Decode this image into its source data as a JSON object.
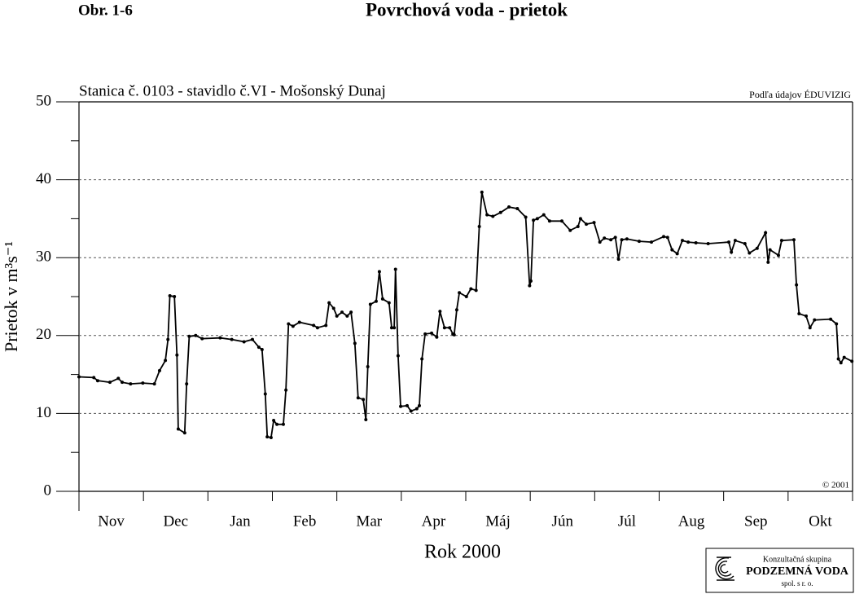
{
  "chart_data": {
    "type": "line",
    "figure_label": "Obr. 1-6",
    "title": "Povrchová voda - prietok",
    "subtitle": "Stanica č. 0103 - stavidlo č.VI - Mošonský Dunaj",
    "source": "Podľa údajov ÉDUVIZIG",
    "copyright": "© 2001",
    "x_label": "Rok 2000",
    "y_label": "Prietok v m³s⁻¹",
    "color": "#000000",
    "grid": true,
    "xlim": [
      0,
      12
    ],
    "ylim": [
      0,
      50
    ],
    "yticks": [
      0,
      10,
      20,
      30,
      40,
      50
    ],
    "xticks": [
      {
        "value": 0.5,
        "label": "Nov"
      },
      {
        "value": 1.5,
        "label": "Dec"
      },
      {
        "value": 2.5,
        "label": "Jan"
      },
      {
        "value": 3.5,
        "label": "Feb"
      },
      {
        "value": 4.5,
        "label": "Mar"
      },
      {
        "value": 5.5,
        "label": "Apr"
      },
      {
        "value": 6.5,
        "label": "Máj"
      },
      {
        "value": 7.5,
        "label": "Jún"
      },
      {
        "value": 8.5,
        "label": "Júl"
      },
      {
        "value": 9.5,
        "label": "Aug"
      },
      {
        "value": 10.5,
        "label": "Sep"
      },
      {
        "value": 11.5,
        "label": "Okt"
      }
    ],
    "x": [
      0,
      0.23,
      0.29,
      0.48,
      0.61,
      0.67,
      0.8,
      0.99,
      1.17,
      1.25,
      1.34,
      1.38,
      1.41,
      1.48,
      1.52,
      1.54,
      1.64,
      1.67,
      1.71,
      1.81,
      1.91,
      2.19,
      2.37,
      2.56,
      2.69,
      2.79,
      2.84,
      2.89,
      2.92,
      2.98,
      3.02,
      3.07,
      3.17,
      3.21,
      3.25,
      3.32,
      3.42,
      3.64,
      3.7,
      3.83,
      3.88,
      3.95,
      4.0,
      4.08,
      4.16,
      4.22,
      4.28,
      4.33,
      4.41,
      4.45,
      4.48,
      4.52,
      4.61,
      4.66,
      4.71,
      4.81,
      4.85,
      4.89,
      4.91,
      4.95,
      4.99,
      5.09,
      5.15,
      5.24,
      5.28,
      5.32,
      5.37,
      5.47,
      5.55,
      5.6,
      5.67,
      5.75,
      5.8,
      5.82,
      5.86,
      5.9,
      6.01,
      6.08,
      6.16,
      6.21,
      6.25,
      6.33,
      6.42,
      6.54,
      6.67,
      6.8,
      6.93,
      6.99,
      7.01,
      7.05,
      7.11,
      7.21,
      7.3,
      7.49,
      7.62,
      7.74,
      7.78,
      7.87,
      7.99,
      8.08,
      8.15,
      8.25,
      8.32,
      8.37,
      8.42,
      8.5,
      8.69,
      8.88,
      9.07,
      9.13,
      9.2,
      9.28,
      9.36,
      9.45,
      9.57,
      9.76,
      10.08,
      10.12,
      10.18,
      10.33,
      10.4,
      10.52,
      10.65,
      10.69,
      10.72,
      10.85,
      10.9,
      11.09,
      11.13,
      11.17,
      11.28,
      11.34,
      11.41,
      11.66,
      11.75,
      11.78,
      11.82,
      11.87,
      11.99
    ],
    "values": [
      14.7,
      14.6,
      14.2,
      14.0,
      14.5,
      14.0,
      13.8,
      13.9,
      13.8,
      15.5,
      16.8,
      19.5,
      25.1,
      25.0,
      17.5,
      8,
      7.5,
      13.8,
      19.9,
      20,
      19.6,
      19.7,
      19.5,
      19.2,
      19.5,
      18.5,
      18.2,
      12.5,
      7,
      6.9,
      9.1,
      8.6,
      8.6,
      13,
      21.5,
      21.2,
      21.7,
      21.3,
      21.0,
      21.3,
      24.2,
      23.5,
      22.5,
      23.0,
      22.5,
      23,
      19,
      12,
      11.8,
      9.2,
      16,
      24,
      24.4,
      28.2,
      24.7,
      24.2,
      21,
      21,
      28.5,
      17.4,
      10.9,
      11,
      10.3,
      10.6,
      11,
      17,
      20.2,
      20.3,
      19.8,
      23.1,
      21,
      21,
      20.2,
      20.1,
      23.3,
      25.5,
      25,
      26,
      25.8,
      34,
      38.4,
      35.5,
      35.3,
      35.8,
      36.5,
      36.3,
      35.2,
      26.4,
      27,
      34.8,
      35,
      35.5,
      34.7,
      34.7,
      33.5,
      34,
      35,
      34.3,
      34.5,
      32,
      32.5,
      32.3,
      32.6,
      29.8,
      32.3,
      32.4,
      32.1,
      32,
      32.7,
      32.6,
      31,
      30.5,
      32.2,
      32,
      31.9,
      31.8,
      32,
      30.7,
      32.2,
      31.8,
      30.6,
      31.2,
      33.2,
      29.4,
      31,
      30.3,
      32.2,
      32.3,
      26.5,
      22.8,
      22.5,
      21,
      22,
      22.1,
      21.5,
      17,
      16.5,
      17.2,
      16.7
    ]
  },
  "logo": {
    "line1": "Konzultačná skupina",
    "line2": "PODZEMNÁ VODA",
    "line3": "spol. s r. o."
  }
}
